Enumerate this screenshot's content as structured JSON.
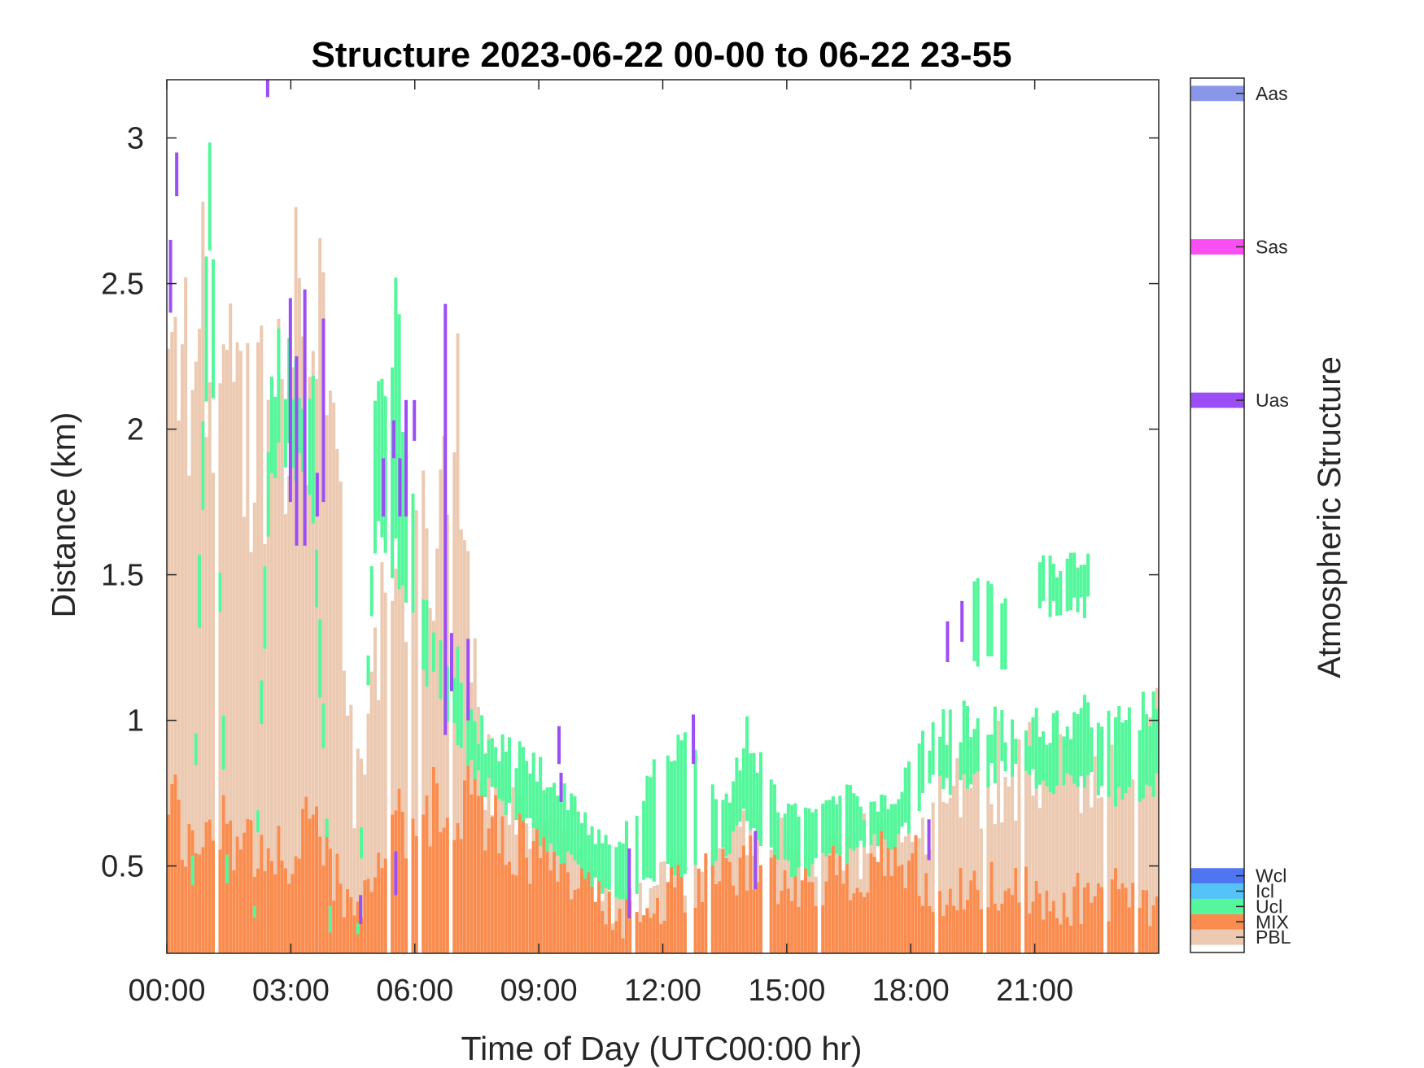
{
  "chart_data": {
    "type": "heatmap",
    "title": "Structure 2023-06-22 00-00 to 06-22 23-55",
    "xlabel": "Time of Day (UTC00:00 hr)",
    "ylabel": "Distance (km)",
    "xlim_hours": [
      0,
      24
    ],
    "ylim": [
      0.2,
      3.2
    ],
    "x_ticks": [
      "00:00",
      "03:00",
      "06:00",
      "09:00",
      "12:00",
      "15:00",
      "18:00",
      "21:00"
    ],
    "y_ticks": [
      "0.5",
      "1",
      "1.5",
      "2",
      "2.5",
      "3"
    ],
    "grid": false,
    "time_step_minutes": 5,
    "colorbar": {
      "label": "Atmospheric Structure",
      "categories": [
        {
          "name": "PBL",
          "color": "#ecc9b1",
          "code": 1
        },
        {
          "name": "MIX",
          "color": "#f98c4e",
          "code": 2
        },
        {
          "name": "Ucl",
          "color": "#54f79b",
          "code": 3
        },
        {
          "name": "Icl",
          "color": "#55c3f7",
          "code": 4
        },
        {
          "name": "Wcl",
          "color": "#4f75f0",
          "code": 5
        },
        {
          "name": "Uas",
          "color": "#9b4ef5",
          "code": 36
        },
        {
          "name": "Sas",
          "color": "#f94ef2",
          "code": 46
        },
        {
          "name": "Aas",
          "color": "#8a97e8",
          "code": 56
        }
      ],
      "code_range": [
        0,
        57
      ]
    },
    "profile_nodes": {
      "hour": [
        0,
        0.5,
        1,
        1.5,
        2,
        2.5,
        3,
        3.5,
        4,
        4.5,
        5,
        5.5,
        6,
        6.5,
        7,
        7.5,
        8,
        8.5,
        9,
        9.5,
        10,
        10.5,
        11,
        11.5,
        12,
        12.5,
        13,
        13.5,
        14,
        14.5,
        15,
        15.5,
        16,
        16.5,
        17,
        17.5,
        18,
        18.5,
        19,
        19.5,
        20,
        20.5,
        21,
        21.5,
        22,
        22.5,
        23,
        23.5,
        24
      ],
      "mix_top_km": [
        0.75,
        0.55,
        0.6,
        0.65,
        0.6,
        0.5,
        0.55,
        0.7,
        0.5,
        0.3,
        0.45,
        0.6,
        0.7,
        0.72,
        0.75,
        0.72,
        0.68,
        0.6,
        0.55,
        0.5,
        0.45,
        0.38,
        0.33,
        0.35,
        0.4,
        0.45,
        0.45,
        0.47,
        0.5,
        0.5,
        0.45,
        0.45,
        0.5,
        0.5,
        0.52,
        0.52,
        0.5,
        0.45,
        0.4,
        0.4,
        0.45,
        0.42,
        0.4,
        0.38,
        0.4,
        0.38,
        0.4,
        0.4,
        0.38
      ],
      "pbl_top_km": [
        2.2,
        2.3,
        2.5,
        2.1,
        2.0,
        2.2,
        2.3,
        2.4,
        2.0,
        0.75,
        1.2,
        1.5,
        1.6,
        1.7,
        2.0,
        0.9,
        0.75,
        0.65,
        0.6,
        0.55,
        0.5,
        0.42,
        0.35,
        0.4,
        0.45,
        0.5,
        0.55,
        0.6,
        0.7,
        0.6,
        0.55,
        0.55,
        0.55,
        0.55,
        0.6,
        0.6,
        0.65,
        0.7,
        0.75,
        0.8,
        0.85,
        0.85,
        0.85,
        0.85,
        0.85,
        0.8,
        0.85,
        0.9,
        0.95
      ],
      "cloud_base_km": [
        0,
        0,
        2.7,
        0,
        0,
        1.9,
        1.95,
        1.75,
        0,
        0,
        1.7,
        1.6,
        1.3,
        1.1,
        0.95,
        0.8,
        0.75,
        0.7,
        0.6,
        0.55,
        0.5,
        0.42,
        0.38,
        0.45,
        0.5,
        0.5,
        0.5,
        0.55,
        0.7,
        0.55,
        0.5,
        0.5,
        0.55,
        0.55,
        0.6,
        0.6,
        0.65,
        0.8,
        0.8,
        0.8,
        0.85,
        0.82,
        0.8,
        0.8,
        0.8,
        0.8,
        0.75,
        0.75,
        0.8
      ],
      "cloud_top_km": [
        0,
        0,
        3.1,
        0,
        0,
        2.3,
        2.3,
        2.1,
        0,
        0,
        2.0,
        2.5,
        1.6,
        1.4,
        1.2,
        1.0,
        0.95,
        0.9,
        0.85,
        0.8,
        0.7,
        0.6,
        0.6,
        0.8,
        0.95,
        0.95,
        0.8,
        0.75,
        1.0,
        0.8,
        0.7,
        0.7,
        0.75,
        0.75,
        0.72,
        0.72,
        0.85,
        1.0,
        1.0,
        1.05,
        1.05,
        1.0,
        1.0,
        1.0,
        1.05,
        1.05,
        1.0,
        1.05,
        1.1
      ]
    },
    "upper_cloud_patches": [
      {
        "start_hour": 19.5,
        "end_hour": 20.3,
        "bottom_km": 1.15,
        "top_km": 1.5
      },
      {
        "start_hour": 21.0,
        "end_hour": 22.4,
        "bottom_km": 1.35,
        "top_km": 1.58
      }
    ],
    "aerosol_streaks": [
      {
        "hour": 0.05,
        "bottom_km": 2.4,
        "top_km": 2.65
      },
      {
        "hour": 0.2,
        "bottom_km": 2.8,
        "top_km": 2.95
      },
      {
        "hour": 2.4,
        "bottom_km": 3.14,
        "top_km": 3.2
      },
      {
        "hour": 2.95,
        "bottom_km": 1.75,
        "top_km": 2.45
      },
      {
        "hour": 3.1,
        "bottom_km": 1.6,
        "top_km": 2.25
      },
      {
        "hour": 3.3,
        "bottom_km": 1.6,
        "top_km": 2.48
      },
      {
        "hour": 3.6,
        "bottom_km": 1.7,
        "top_km": 1.85
      },
      {
        "hour": 3.75,
        "bottom_km": 1.75,
        "top_km": 2.38
      },
      {
        "hour": 4.65,
        "bottom_km": 0.3,
        "top_km": 0.4
      },
      {
        "hour": 5.2,
        "bottom_km": 1.7,
        "top_km": 1.9
      },
      {
        "hour": 5.45,
        "bottom_km": 1.9,
        "top_km": 2.03
      },
      {
        "hour": 5.5,
        "bottom_km": 0.4,
        "top_km": 0.55
      },
      {
        "hour": 5.6,
        "bottom_km": 1.7,
        "top_km": 1.9
      },
      {
        "hour": 5.75,
        "bottom_km": 1.7,
        "top_km": 2.1
      },
      {
        "hour": 5.95,
        "bottom_km": 1.96,
        "top_km": 2.1
      },
      {
        "hour": 6.7,
        "bottom_km": 0.95,
        "top_km": 2.43
      },
      {
        "hour": 6.85,
        "bottom_km": 1.1,
        "top_km": 1.3
      },
      {
        "hour": 7.25,
        "bottom_km": 1.0,
        "top_km": 1.28
      },
      {
        "hour": 9.45,
        "bottom_km": 0.85,
        "top_km": 0.98
      },
      {
        "hour": 9.5,
        "bottom_km": 0.72,
        "top_km": 0.82
      },
      {
        "hour": 11.15,
        "bottom_km": 0.32,
        "top_km": 0.56
      },
      {
        "hour": 12.7,
        "bottom_km": 0.85,
        "top_km": 1.02
      },
      {
        "hour": 14.2,
        "bottom_km": 0.42,
        "top_km": 0.62
      },
      {
        "hour": 18.4,
        "bottom_km": 0.52,
        "top_km": 0.66
      },
      {
        "hour": 18.85,
        "bottom_km": 1.2,
        "top_km": 1.34
      },
      {
        "hour": 19.2,
        "bottom_km": 1.27,
        "top_km": 1.41
      }
    ]
  }
}
